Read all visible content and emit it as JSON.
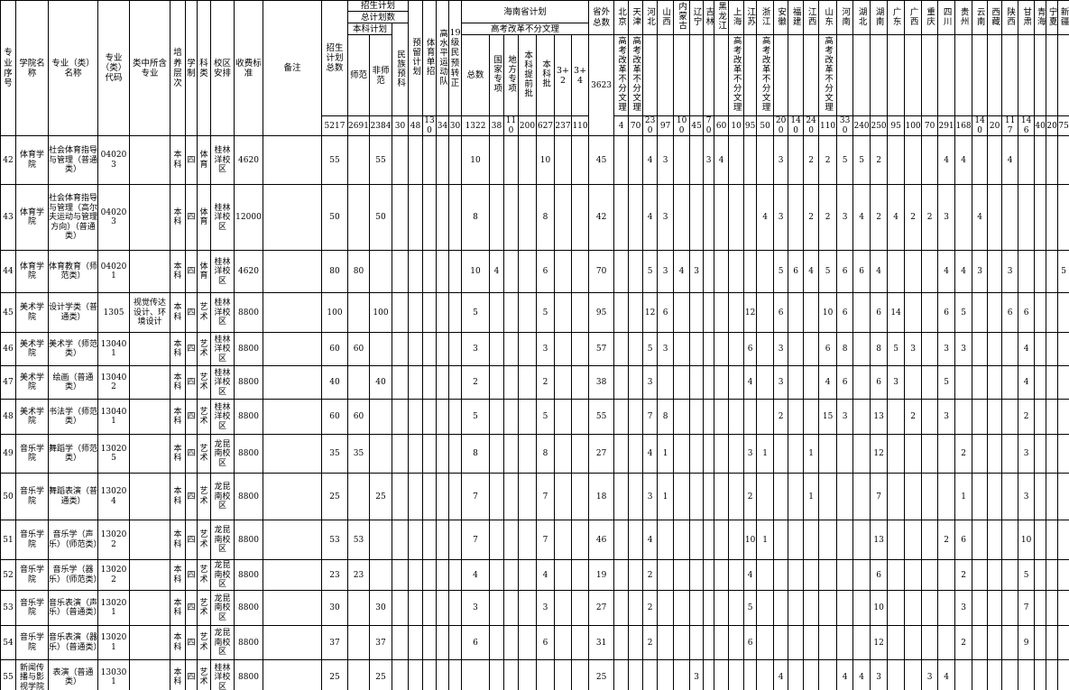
{
  "header": {
    "serial": "专业序号",
    "college": "学院名称",
    "major": "专业（类）名称",
    "major_code": "专业（类）代码",
    "contained": "类中所含专业",
    "level": "培养层次",
    "years": "学制",
    "subject_type": "科类",
    "campus": "校区安排",
    "fee": "收费标准",
    "remark": "备注",
    "plan_total": "招生计划总数",
    "plan_group_l1": "招生计划",
    "plan_group_l2": "总计划数",
    "plan_group_l3": "本科计划",
    "shifan": "师范",
    "feishifan": "非师范",
    "minzu_yuke": "民族预科",
    "yuliu": "预留计划",
    "tiyu_danzhao": "体育单招",
    "gaoshuiping": "高水平运动队",
    "yuke_zhuanzheng": "19级民预转正",
    "hainan_group": "海南省计划",
    "reform_label": "高考改革不分文理",
    "hainan_cols": [
      "总数",
      "国家专项",
      "地方专项",
      "本科提前批",
      "本科批",
      "3+2",
      "3+4"
    ],
    "shengwai": "省外总数",
    "shengwai_total": "3623",
    "provinces": [
      {
        "name": "北京",
        "reform": true
      },
      {
        "name": "天津",
        "reform": true
      },
      {
        "name": "河北",
        "reform": false
      },
      {
        "name": "山西",
        "reform": false
      },
      {
        "name": "内蒙古",
        "reform": false
      },
      {
        "name": "辽宁",
        "reform": false
      },
      {
        "name": "吉林",
        "reform": false
      },
      {
        "name": "黑龙江",
        "reform": false
      },
      {
        "name": "上海",
        "reform": true
      },
      {
        "name": "江苏",
        "reform": false
      },
      {
        "name": "浙江",
        "reform": true
      },
      {
        "name": "安徽",
        "reform": false
      },
      {
        "name": "福建",
        "reform": false
      },
      {
        "name": "江西",
        "reform": false
      },
      {
        "name": "山东",
        "reform": true
      },
      {
        "name": "河南",
        "reform": false
      },
      {
        "name": "湖北",
        "reform": false
      },
      {
        "name": "湖南",
        "reform": false
      },
      {
        "name": "广东",
        "reform": false
      },
      {
        "name": "广西",
        "reform": false
      },
      {
        "name": "重庆",
        "reform": false
      },
      {
        "name": "四川",
        "reform": false
      },
      {
        "name": "贵州",
        "reform": false
      },
      {
        "name": "云南",
        "reform": false
      },
      {
        "name": "西藏",
        "reform": false
      },
      {
        "name": "陕西",
        "reform": false
      },
      {
        "name": "甘肃",
        "reform": false
      },
      {
        "name": "青海",
        "reform": false
      },
      {
        "name": "宁夏",
        "reform": false
      },
      {
        "name": "新疆",
        "reform": false
      }
    ]
  },
  "totals": [
    "5217",
    "2691",
    "2384",
    "30",
    "48",
    "130",
    "34",
    "30",
    "1322",
    "38",
    "110",
    "200",
    "627",
    "237",
    "110",
    "",
    "4",
    "70",
    "230",
    "97",
    "100",
    "45",
    "70",
    "60",
    "10",
    "95",
    "50",
    "200",
    "140",
    "240",
    "110",
    "330",
    "240",
    "250",
    "95",
    "100",
    "70",
    "291",
    "168",
    "140",
    "20",
    "117",
    "146",
    "40",
    "20",
    "75"
  ],
  "rows": [
    {
      "no": "42",
      "college": "体育学院",
      "major": "社会体育指导与管理（普通类）",
      "code": "040203",
      "contained": "",
      "level": "本科",
      "years": "四",
      "subject": "体育",
      "campus": "桂林洋校区",
      "fee": "4620",
      "remark": "",
      "vals": [
        "55",
        "",
        "55",
        "",
        "",
        "",
        "",
        "",
        "10",
        "",
        "",
        "",
        "10",
        "",
        "",
        "45",
        "",
        "",
        "4",
        "3",
        "",
        "",
        "3",
        "4",
        "",
        "",
        "",
        "3",
        "",
        "2",
        "2",
        "5",
        "5",
        "2",
        "",
        "",
        "",
        "4",
        "4",
        "",
        "",
        "4",
        "",
        "",
        "",
        ""
      ]
    },
    {
      "no": "43",
      "college": "体育学院",
      "major": "社会体育指导与管理（高尔夫运动与管理方向）（普通类）",
      "code": "040203",
      "contained": "",
      "level": "本科",
      "years": "四",
      "subject": "体育",
      "campus": "桂林洋校区",
      "fee": "12000",
      "remark": "",
      "vals": [
        "50",
        "",
        "50",
        "",
        "",
        "",
        "",
        "",
        "8",
        "",
        "",
        "",
        "8",
        "",
        "",
        "42",
        "",
        "",
        "4",
        "3",
        "",
        "",
        "",
        "",
        "",
        "",
        "4",
        "3",
        "",
        "2",
        "2",
        "3",
        "4",
        "2",
        "4",
        "2",
        "2",
        "3",
        "",
        "4",
        "",
        "",
        "",
        "",
        "",
        ""
      ]
    },
    {
      "no": "44",
      "college": "体育学院",
      "major": "体育教育（师范类）",
      "code": "040201",
      "contained": "",
      "level": "本科",
      "years": "四",
      "subject": "体育",
      "campus": "桂林洋校区",
      "fee": "4620",
      "remark": "",
      "vals": [
        "80",
        "80",
        "",
        "",
        "",
        "",
        "",
        "",
        "10",
        "4",
        "",
        "",
        "6",
        "",
        "",
        "70",
        "",
        "",
        "5",
        "3",
        "4",
        "3",
        "",
        "",
        "",
        "",
        "",
        "5",
        "6",
        "4",
        "5",
        "6",
        "6",
        "4",
        "",
        "",
        "",
        "4",
        "4",
        "3",
        "",
        "3",
        "",
        "",
        "",
        "5"
      ]
    },
    {
      "no": "45",
      "college": "美术学院",
      "major": "设计学类（普通类）",
      "code": "1305",
      "contained": "视觉传达设计、环境设计",
      "level": "本科",
      "years": "四",
      "subject": "艺术",
      "campus": "桂林洋校区",
      "fee": "8800",
      "remark": "",
      "vals": [
        "100",
        "",
        "100",
        "",
        "",
        "",
        "",
        "",
        "5",
        "",
        "",
        "",
        "5",
        "",
        "",
        "95",
        "",
        "",
        "12",
        "6",
        "",
        "",
        "",
        "",
        "",
        "12",
        "",
        "6",
        "",
        "",
        "10",
        "6",
        "",
        "6",
        "14",
        "",
        "",
        "6",
        "5",
        "",
        "",
        "6",
        "6",
        "",
        "",
        ""
      ]
    },
    {
      "no": "46",
      "college": "美术学院",
      "major": "美术学（师范类）",
      "code": "130401",
      "contained": "",
      "level": "本科",
      "years": "四",
      "subject": "艺术",
      "campus": "桂林洋校区",
      "fee": "8800",
      "remark": "",
      "vals": [
        "60",
        "60",
        "",
        "",
        "",
        "",
        "",
        "",
        "3",
        "",
        "",
        "",
        "3",
        "",
        "",
        "57",
        "",
        "",
        "5",
        "3",
        "",
        "",
        "",
        "",
        "",
        "6",
        "",
        "3",
        "",
        "",
        "6",
        "8",
        "",
        "8",
        "5",
        "3",
        "",
        "3",
        "3",
        "",
        "",
        "",
        "4",
        "",
        "",
        ""
      ]
    },
    {
      "no": "47",
      "college": "美术学院",
      "major": "绘画（普通类）",
      "code": "130402",
      "contained": "",
      "level": "本科",
      "years": "四",
      "subject": "艺术",
      "campus": "桂林洋校区",
      "fee": "8800",
      "remark": "",
      "vals": [
        "40",
        "",
        "40",
        "",
        "",
        "",
        "",
        "",
        "2",
        "",
        "",
        "",
        "2",
        "",
        "",
        "38",
        "",
        "",
        "3",
        "",
        "",
        "",
        "",
        "",
        "",
        "4",
        "",
        "3",
        "",
        "",
        "4",
        "6",
        "",
        "6",
        "3",
        "",
        "",
        "5",
        "",
        "",
        "",
        "",
        "4",
        "",
        "",
        ""
      ]
    },
    {
      "no": "48",
      "college": "美术学院",
      "major": "书法学（师范类）",
      "code": "130401",
      "contained": "",
      "level": "本科",
      "years": "四",
      "subject": "艺术",
      "campus": "桂林洋校区",
      "fee": "8800",
      "remark": "",
      "vals": [
        "60",
        "60",
        "",
        "",
        "",
        "",
        "",
        "",
        "5",
        "",
        "",
        "",
        "5",
        "",
        "",
        "55",
        "",
        "",
        "7",
        "8",
        "",
        "",
        "",
        "",
        "",
        "",
        "",
        "2",
        "",
        "",
        "15",
        "3",
        "",
        "13",
        "",
        "2",
        "",
        "3",
        "",
        "",
        "",
        "",
        "2",
        "",
        "",
        ""
      ]
    },
    {
      "no": "49",
      "college": "音乐学院",
      "major": "舞蹈学（师范类）",
      "code": "130205",
      "contained": "",
      "level": "本科",
      "years": "四",
      "subject": "艺术",
      "campus": "龙昆南校区",
      "fee": "8800",
      "remark": "",
      "vals": [
        "35",
        "35",
        "",
        "",
        "",
        "",
        "",
        "",
        "8",
        "",
        "",
        "",
        "8",
        "",
        "",
        "27",
        "",
        "",
        "4",
        "1",
        "",
        "",
        "",
        "",
        "",
        "3",
        "1",
        "",
        "",
        "1",
        "",
        "",
        "",
        "12",
        "",
        "",
        "",
        "",
        "2",
        "",
        "",
        "",
        "3",
        "",
        "",
        ""
      ]
    },
    {
      "no": "50",
      "college": "音乐学院",
      "major": "舞蹈表演（普通类）",
      "code": "130204",
      "contained": "",
      "level": "本科",
      "years": "四",
      "subject": "艺术",
      "campus": "龙昆南校区",
      "fee": "8800",
      "remark": "",
      "vals": [
        "25",
        "",
        "25",
        "",
        "",
        "",
        "",
        "",
        "7",
        "",
        "",
        "",
        "7",
        "",
        "",
        "18",
        "",
        "",
        "3",
        "1",
        "",
        "",
        "",
        "",
        "",
        "2",
        "",
        "",
        "",
        "1",
        "",
        "",
        "",
        "7",
        "",
        "",
        "",
        "",
        "1",
        "",
        "",
        "",
        "3",
        "",
        "",
        ""
      ]
    },
    {
      "no": "51",
      "college": "音乐学院",
      "major": "音乐学（声乐）（师范类）",
      "code": "130202",
      "contained": "",
      "level": "本科",
      "years": "四",
      "subject": "艺术",
      "campus": "龙昆南校区",
      "fee": "8800",
      "remark": "",
      "vals": [
        "53",
        "53",
        "",
        "",
        "",
        "",
        "",
        "",
        "7",
        "",
        "",
        "",
        "7",
        "",
        "",
        "46",
        "",
        "",
        "4",
        "",
        "",
        "",
        "",
        "",
        "",
        "10",
        "1",
        "",
        "",
        "",
        "",
        "",
        "",
        "13",
        "",
        "",
        "",
        "2",
        "6",
        "",
        "",
        "",
        "10",
        "",
        "",
        ""
      ]
    },
    {
      "no": "52",
      "college": "音乐学院",
      "major": "音乐学（器乐）（师范类）",
      "code": "130202",
      "contained": "",
      "level": "本科",
      "years": "四",
      "subject": "艺术",
      "campus": "龙昆南校区",
      "fee": "8800",
      "remark": "",
      "vals": [
        "23",
        "23",
        "",
        "",
        "",
        "",
        "",
        "",
        "4",
        "",
        "",
        "",
        "4",
        "",
        "",
        "19",
        "",
        "",
        "2",
        "",
        "",
        "",
        "",
        "",
        "",
        "4",
        "",
        "",
        "",
        "",
        "",
        "",
        "",
        "6",
        "",
        "",
        "",
        "",
        "2",
        "",
        "",
        "",
        "5",
        "",
        "",
        ""
      ]
    },
    {
      "no": "53",
      "college": "音乐学院",
      "major": "音乐表演（声乐）（普通类）",
      "code": "130201",
      "contained": "",
      "level": "本科",
      "years": "四",
      "subject": "艺术",
      "campus": "龙昆南校区",
      "fee": "8800",
      "remark": "",
      "vals": [
        "30",
        "",
        "30",
        "",
        "",
        "",
        "",
        "",
        "3",
        "",
        "",
        "",
        "3",
        "",
        "",
        "27",
        "",
        "",
        "2",
        "",
        "",
        "",
        "",
        "",
        "",
        "5",
        "",
        "",
        "",
        "",
        "",
        "",
        "",
        "10",
        "",
        "",
        "",
        "",
        "3",
        "",
        "",
        "",
        "7",
        "",
        "",
        ""
      ]
    },
    {
      "no": "54",
      "college": "音乐学院",
      "major": "音乐表演（器乐）（普通类）",
      "code": "130201",
      "contained": "",
      "level": "本科",
      "years": "四",
      "subject": "艺术",
      "campus": "龙昆南校区",
      "fee": "8800",
      "remark": "",
      "vals": [
        "37",
        "",
        "37",
        "",
        "",
        "",
        "",
        "",
        "6",
        "",
        "",
        "",
        "6",
        "",
        "",
        "31",
        "",
        "",
        "2",
        "",
        "",
        "",
        "",
        "",
        "",
        "6",
        "",
        "",
        "",
        "",
        "",
        "",
        "",
        "12",
        "",
        "",
        "",
        "",
        "2",
        "",
        "",
        "",
        "9",
        "",
        "",
        ""
      ]
    },
    {
      "no": "55",
      "college": "新闻传播与影视学院",
      "major": "表演（普通类）",
      "code": "130301",
      "contained": "",
      "level": "本科",
      "years": "四",
      "subject": "艺术",
      "campus": "桂林洋校区",
      "fee": "8800",
      "remark": "",
      "vals": [
        "25",
        "",
        "25",
        "",
        "",
        "",
        "",
        "",
        "",
        "",
        "",
        "",
        "",
        "",
        "",
        "25",
        "",
        "",
        "",
        "",
        "",
        "3",
        "",
        "",
        "",
        "",
        "",
        "4",
        "",
        "",
        "",
        "4",
        "4",
        "3",
        "",
        "",
        "3",
        "4",
        "",
        "",
        "",
        "",
        "",
        "",
        "",
        ""
      ]
    }
  ]
}
